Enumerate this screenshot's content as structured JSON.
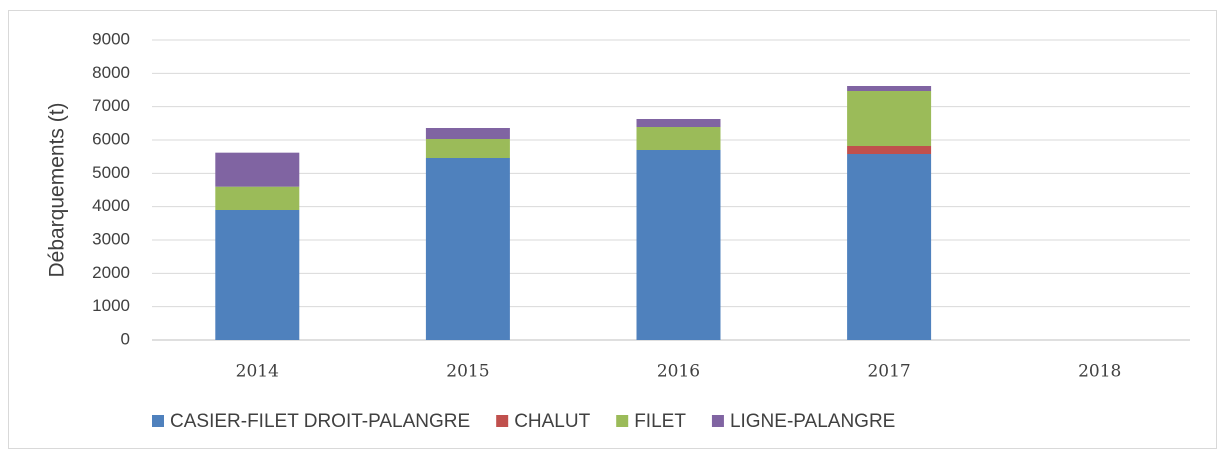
{
  "chart_data": {
    "type": "stacked_bar",
    "y_label": "Débarquements (t)",
    "categories": [
      "2014",
      "2015",
      "2016",
      "2017",
      "2018"
    ],
    "series": [
      {
        "name": "CASIER-FILET DROIT-PALANGRE",
        "color": "#4f81bd",
        "values": [
          3900,
          5460,
          5700,
          5580,
          null
        ]
      },
      {
        "name": "CHALUT",
        "color": "#c0504d",
        "values": [
          0,
          0,
          0,
          240,
          null
        ]
      },
      {
        "name": "FILET",
        "color": "#9bbb59",
        "values": [
          700,
          570,
          690,
          1650,
          null
        ]
      },
      {
        "name": "LIGNE-PALANGRE",
        "color": "#8064a2",
        "values": [
          1020,
          330,
          240,
          150,
          null
        ]
      }
    ],
    "ylim": [
      0,
      9000
    ],
    "yticks": [
      0,
      1000,
      2000,
      3000,
      4000,
      5000,
      6000,
      7000,
      8000,
      9000
    ],
    "grid": true,
    "legend": "bottom"
  }
}
